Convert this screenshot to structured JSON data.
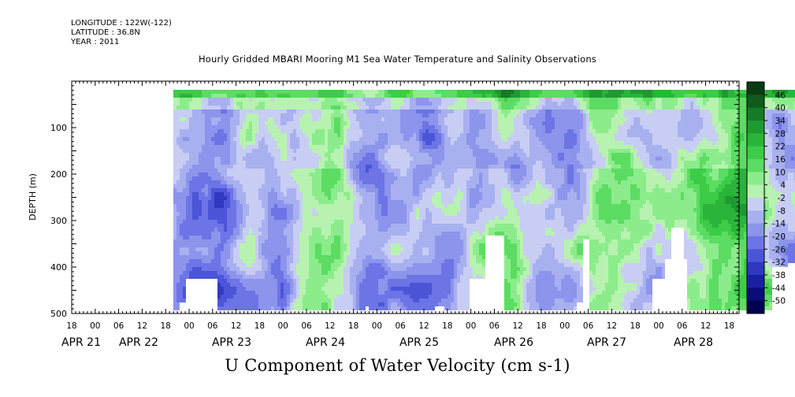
{
  "header": {
    "longitude": "LONGITUDE : 122W(-122)",
    "latitude": "LATITUDE : 36.8N",
    "year": "YEAR : 2011",
    "title": "Hourly Gridded MBARI Mooring M1 Sea Water Temperature and Salinity Observations"
  },
  "chart_data": {
    "type": "heatmap",
    "title": "Hourly Gridded MBARI Mooring M1 Sea Water Temperature and Salinity Observations",
    "xlabel": "U Component of Water Velocity (cm s-1)",
    "ylabel": "DEPTH (m)",
    "ylim": [
      500,
      0
    ],
    "y_ticks": [
      100,
      200,
      300,
      400,
      500
    ],
    "x_hour_ticks": [
      "18",
      "00",
      "06",
      "12",
      "18",
      "00",
      "06",
      "12",
      "18",
      "00",
      "06",
      "12",
      "18",
      "00",
      "06",
      "12",
      "18",
      "00",
      "06",
      "12",
      "18",
      "00",
      "06",
      "12",
      "18",
      "00",
      "06",
      "12",
      "18",
      "00",
      "06",
      "12",
      "18",
      "00",
      "06",
      "12",
      "18",
      "00",
      "06",
      "12",
      "18",
      "00",
      "06",
      "12",
      "18"
    ],
    "x_day_labels": [
      "APR 21",
      "APR 22",
      "APR 23",
      "APR 24",
      "APR 25",
      "APR 26",
      "APR 27",
      "APR 28"
    ],
    "colorbar_levels": [
      "46",
      "40",
      "34",
      "28",
      "22",
      "16",
      "10",
      "4",
      "-2",
      "-8",
      "-14",
      "-20",
      "-26",
      "-32",
      "-38",
      "-44",
      "-50"
    ],
    "colorbar_colors": [
      "#0a3c12",
      "#0f5a1c",
      "#167a26",
      "#1f9a30",
      "#2ab43a",
      "#3ccc48",
      "#5cdc62",
      "#8cec8c",
      "#b8f2b0",
      "#c8cdf4",
      "#a8b0f0",
      "#8c94ec",
      "#6c74e6",
      "#4c54d8",
      "#3038c0",
      "#1a20a0",
      "#0a0c78",
      "#000050"
    ],
    "data_start_day": 1.08,
    "data_end_day": 7.97,
    "blank_regions_desc": "bottom gaps where no data",
    "value_summary": "Mostly weak currents between -20 and +20 cm/s; green (eastward) near surface and mid-depth, blue (westward) bands near Apr 22-23 and Apr 24-25"
  },
  "colors": {
    "background": "#ffffff",
    "axis": "#000000"
  }
}
